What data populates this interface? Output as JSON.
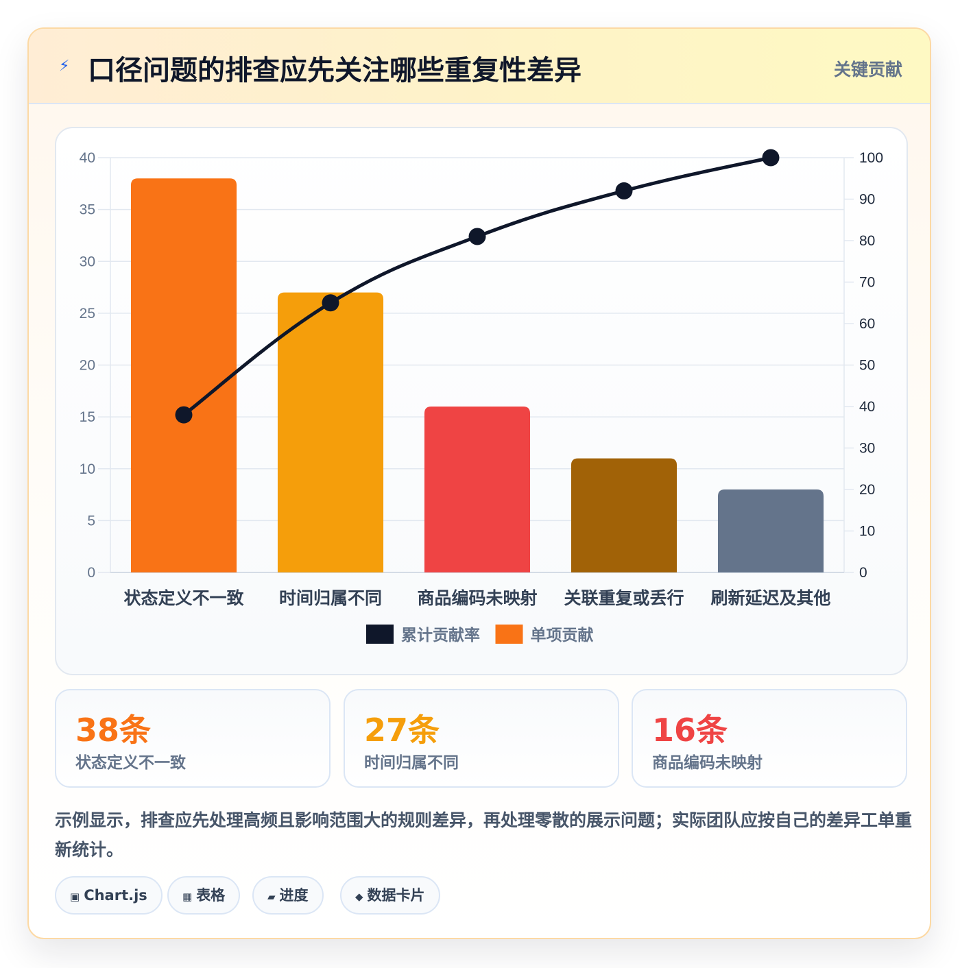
{
  "header": {
    "icon": "lightning-icon",
    "title": "口径问题的排查应先关注哪些重复性差异",
    "tag": "关键贡献"
  },
  "chart_data": {
    "type": "bar",
    "categories": [
      "状态定义不一致",
      "时间归属不同",
      "商品编码未映射",
      "关联重复或丢行",
      "刷新延迟及其他"
    ],
    "series": [
      {
        "name": "单项贡献",
        "type": "bar",
        "axis": "left",
        "values": [
          38,
          27,
          16,
          11,
          8
        ],
        "colors": [
          "#f97316",
          "#f59e0b",
          "#ef4444",
          "#a16207",
          "#64748b"
        ]
      },
      {
        "name": "累计贡献率",
        "type": "line",
        "axis": "right",
        "values": [
          38,
          65,
          81,
          92,
          100
        ],
        "color": "#0f172a"
      }
    ],
    "ylim_left": [
      0,
      40
    ],
    "yticks_left": [
      0,
      5,
      10,
      15,
      20,
      25,
      30,
      35,
      40
    ],
    "ylim_right": [
      0,
      100
    ],
    "yticks_right": [
      0,
      10,
      20,
      30,
      40,
      50,
      60,
      70,
      80,
      90,
      100
    ],
    "grid": true,
    "legend_position": "bottom",
    "legend": [
      {
        "label": "累计贡献率",
        "color": "#0f172a"
      },
      {
        "label": "单项贡献",
        "color": "#f97316"
      }
    ]
  },
  "stats": [
    {
      "value": "38条",
      "label": "状态定义不一致",
      "color": "#f97316"
    },
    {
      "value": "27条",
      "label": "时间归属不同",
      "color": "#f59e0b"
    },
    {
      "value": "16条",
      "label": "商品编码未映射",
      "color": "#ef4444"
    }
  ],
  "description": "示例显示，排查应先处理高频且影响范围大的规则差异，再处理零散的展示问题；实际团队应按自己的差异工单重新统计。",
  "chips": [
    {
      "icon": "chart-icon",
      "glyph": "▣",
      "label": "Chart.js"
    },
    {
      "icon": "table-icon",
      "glyph": "▦",
      "label": "表格"
    },
    {
      "icon": "progress-icon",
      "glyph": "▰",
      "label": "进度"
    },
    {
      "icon": "data-card-icon",
      "glyph": "◆",
      "label": "数据卡片"
    }
  ]
}
